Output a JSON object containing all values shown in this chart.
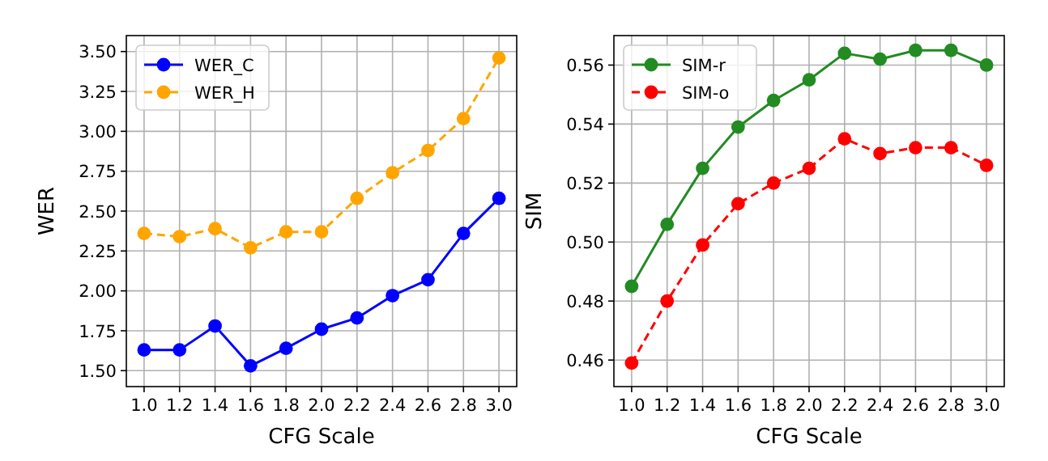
{
  "chart_data": [
    {
      "type": "line",
      "xlabel": "CFG Scale",
      "ylabel": "WER",
      "x": [
        1.0,
        1.2,
        1.4,
        1.6,
        1.8,
        2.0,
        2.2,
        2.4,
        2.6,
        2.8,
        3.0
      ],
      "xlim": [
        0.9,
        3.1
      ],
      "xticks": [
        {
          "value": 1.0,
          "label": "1.0"
        },
        {
          "value": 1.2,
          "label": "1.2"
        },
        {
          "value": 1.4,
          "label": "1.4"
        },
        {
          "value": 1.6,
          "label": "1.6"
        },
        {
          "value": 1.8,
          "label": "1.8"
        },
        {
          "value": 2.0,
          "label": "2.0"
        },
        {
          "value": 2.2,
          "label": "2.2"
        },
        {
          "value": 2.4,
          "label": "2.4"
        },
        {
          "value": 2.6,
          "label": "2.6"
        },
        {
          "value": 2.8,
          "label": "2.8"
        },
        {
          "value": 3.0,
          "label": "3.0"
        }
      ],
      "ylim": [
        1.4,
        3.6
      ],
      "yticks": [
        {
          "value": 1.5,
          "label": "1.50"
        },
        {
          "value": 1.75,
          "label": "1.75"
        },
        {
          "value": 2.0,
          "label": "2.00"
        },
        {
          "value": 2.25,
          "label": "2.25"
        },
        {
          "value": 2.5,
          "label": "2.50"
        },
        {
          "value": 2.75,
          "label": "2.75"
        },
        {
          "value": 3.0,
          "label": "3.00"
        },
        {
          "value": 3.25,
          "label": "3.25"
        },
        {
          "value": 3.5,
          "label": "3.50"
        }
      ],
      "grid": true,
      "legend": "top left",
      "marker": "circle",
      "series": [
        {
          "name": "WER_C",
          "color": "#0000ff",
          "line_style": "solid",
          "values": [
            1.63,
            1.63,
            1.78,
            1.53,
            1.64,
            1.76,
            1.83,
            1.97,
            2.07,
            2.36,
            2.58
          ]
        },
        {
          "name": "WER_H",
          "color": "#ffa500",
          "line_style": "dashed",
          "values": [
            2.36,
            2.34,
            2.39,
            2.27,
            2.37,
            2.37,
            2.58,
            2.74,
            2.88,
            3.08,
            3.46
          ]
        }
      ]
    },
    {
      "type": "line",
      "xlabel": "CFG Scale",
      "ylabel": "SIM",
      "x": [
        1.0,
        1.2,
        1.4,
        1.6,
        1.8,
        2.0,
        2.2,
        2.4,
        2.6,
        2.8,
        3.0
      ],
      "xlim": [
        0.9,
        3.1
      ],
      "xticks": [
        {
          "value": 1.0,
          "label": "1.0"
        },
        {
          "value": 1.2,
          "label": "1.2"
        },
        {
          "value": 1.4,
          "label": "1.4"
        },
        {
          "value": 1.6,
          "label": "1.6"
        },
        {
          "value": 1.8,
          "label": "1.8"
        },
        {
          "value": 2.0,
          "label": "2.0"
        },
        {
          "value": 2.2,
          "label": "2.2"
        },
        {
          "value": 2.4,
          "label": "2.4"
        },
        {
          "value": 2.6,
          "label": "2.6"
        },
        {
          "value": 2.8,
          "label": "2.8"
        },
        {
          "value": 3.0,
          "label": "3.0"
        }
      ],
      "ylim": [
        0.451,
        0.57
      ],
      "yticks": [
        {
          "value": 0.46,
          "label": "0.46"
        },
        {
          "value": 0.48,
          "label": "0.48"
        },
        {
          "value": 0.5,
          "label": "0.50"
        },
        {
          "value": 0.52,
          "label": "0.52"
        },
        {
          "value": 0.54,
          "label": "0.54"
        },
        {
          "value": 0.56,
          "label": "0.56"
        }
      ],
      "grid": true,
      "legend": "top left",
      "marker": "circle",
      "series": [
        {
          "name": "SIM-r",
          "color": "#228b22",
          "line_style": "solid",
          "values": [
            0.485,
            0.506,
            0.525,
            0.539,
            0.548,
            0.555,
            0.564,
            0.562,
            0.565,
            0.565,
            0.56
          ]
        },
        {
          "name": "SIM-o",
          "color": "#ff0000",
          "line_style": "dashed",
          "values": [
            0.459,
            0.48,
            0.499,
            0.513,
            0.52,
            0.525,
            0.535,
            0.53,
            0.532,
            0.532,
            0.526
          ]
        }
      ]
    }
  ]
}
